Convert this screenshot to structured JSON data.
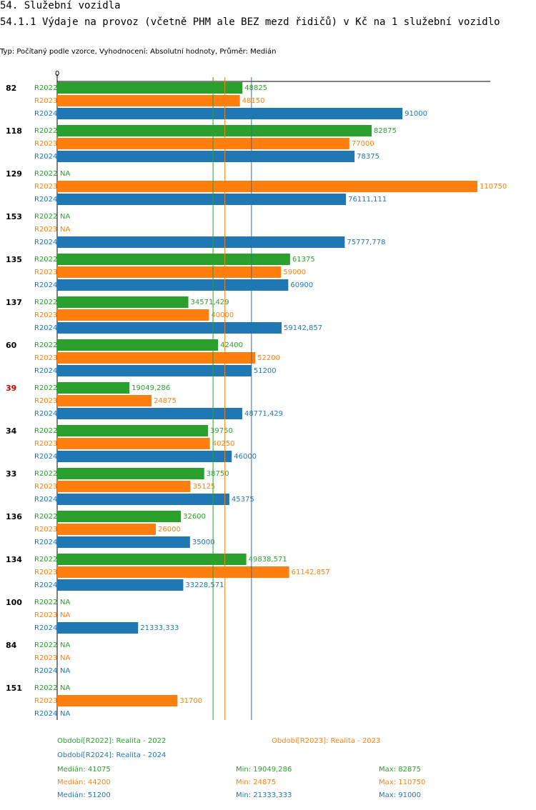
{
  "header": {
    "title": "54. Služební vozidla",
    "subtitle": "54.1.1 Výdaje na provoz (včetně PHM ale BEZ mezd řidičů) v Kč na 1 služební vozidlo",
    "typ": "Typ: Počítaný podle vzorce, Vyhodnocení: Absolutní hodnoty, Průměr: Medián"
  },
  "colors": {
    "R2022": "#2ca02c",
    "R2023": "#ff7f0e",
    "R2024": "#1f77b4",
    "highlight": "#cc0000"
  },
  "chart_data": {
    "type": "bar",
    "orientation": "horizontal",
    "axis_zero_label": "0",
    "xlim": [
      0,
      113000
    ],
    "na_label": "NA",
    "series_names": [
      "R2022",
      "R2023",
      "R2024"
    ],
    "groups": [
      {
        "id": "82",
        "highlight": false,
        "values": [
          48825,
          48150,
          91000
        ],
        "labels": [
          "48825",
          "48150",
          "91000"
        ]
      },
      {
        "id": "118",
        "highlight": false,
        "values": [
          82875,
          77000,
          78375
        ],
        "labels": [
          "82875",
          "77000",
          "78375"
        ]
      },
      {
        "id": "129",
        "highlight": false,
        "values": [
          null,
          110750,
          76111.111
        ],
        "labels": [
          "NA",
          "110750",
          "76111,111"
        ]
      },
      {
        "id": "153",
        "highlight": false,
        "values": [
          null,
          null,
          75777.778
        ],
        "labels": [
          "NA",
          "NA",
          "75777,778"
        ]
      },
      {
        "id": "135",
        "highlight": false,
        "values": [
          61375,
          59000,
          60900
        ],
        "labels": [
          "61375",
          "59000",
          "60900"
        ]
      },
      {
        "id": "137",
        "highlight": false,
        "values": [
          34571.429,
          40000,
          59142.857
        ],
        "labels": [
          "34571,429",
          "40000",
          "59142,857"
        ]
      },
      {
        "id": "60",
        "highlight": false,
        "values": [
          42400,
          52200,
          51200
        ],
        "labels": [
          "42400",
          "52200",
          "51200"
        ]
      },
      {
        "id": "39",
        "highlight": true,
        "values": [
          19049.286,
          24875,
          48771.429
        ],
        "labels": [
          "19049,286",
          "24875",
          "48771,429"
        ]
      },
      {
        "id": "34",
        "highlight": false,
        "values": [
          39750,
          40250,
          46000
        ],
        "labels": [
          "39750",
          "40250",
          "46000"
        ]
      },
      {
        "id": "33",
        "highlight": false,
        "values": [
          38750,
          35125,
          45375
        ],
        "labels": [
          "38750",
          "35125",
          "45375"
        ]
      },
      {
        "id": "136",
        "highlight": false,
        "values": [
          32600,
          26000,
          35000
        ],
        "labels": [
          "32600",
          "26000",
          "35000"
        ]
      },
      {
        "id": "134",
        "highlight": false,
        "values": [
          49838.571,
          61142.857,
          33228.571
        ],
        "labels": [
          "49838,571",
          "61142,857",
          "33228,571"
        ]
      },
      {
        "id": "100",
        "highlight": false,
        "values": [
          null,
          null,
          21333.333
        ],
        "labels": [
          "NA",
          "NA",
          "21333,333"
        ]
      },
      {
        "id": "84",
        "highlight": false,
        "values": [
          null,
          null,
          null
        ],
        "labels": [
          "NA",
          "NA",
          "NA"
        ]
      },
      {
        "id": "151",
        "highlight": false,
        "values": [
          null,
          31700,
          null
        ],
        "labels": [
          "NA",
          "31700",
          "NA"
        ]
      }
    ],
    "median_lines": [
      41075,
      44200,
      51200
    ]
  },
  "legend": {
    "periods": [
      {
        "series": "R2022",
        "text": "Období[R2022]: Realita - 2022"
      },
      {
        "series": "R2023",
        "text": "Období[R2023]: Realita - 2023"
      },
      {
        "series": "R2024",
        "text": "Období[R2024]: Realita - 2024"
      }
    ],
    "stats": [
      {
        "series": "R2022",
        "median": "Medián: 41075",
        "min": "Min: 19049,286",
        "max": "Max: 82875"
      },
      {
        "series": "R2023",
        "median": "Medián: 44200",
        "min": "Min: 24875",
        "max": "Max: 110750"
      },
      {
        "series": "R2024",
        "median": "Medián: 51200",
        "min": "Min: 21333,333",
        "max": "Max: 91000"
      }
    ]
  }
}
